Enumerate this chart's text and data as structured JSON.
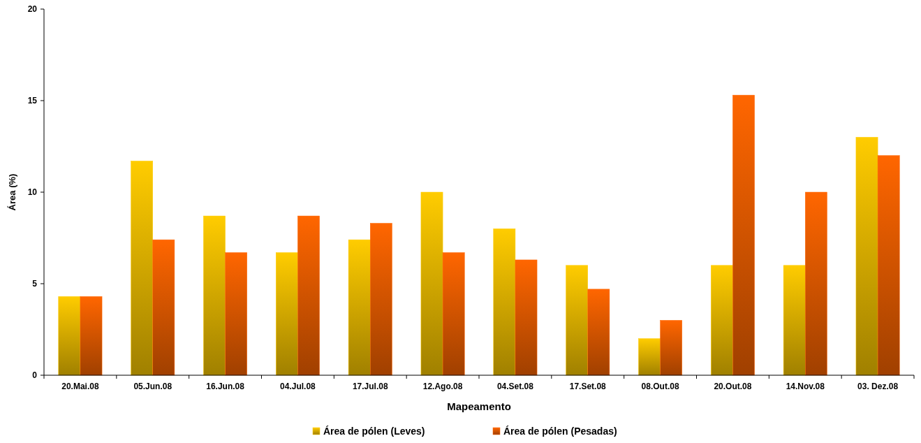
{
  "chart_data": {
    "type": "bar",
    "xlabel": "Mapeamento",
    "ylabel": "Área (%)",
    "categories": [
      "20.Mai.08",
      "05.Jun.08",
      "16.Jun.08",
      "04.Jul.08",
      "17.Jul.08",
      "12.Ago.08",
      "04.Set.08",
      "17.Set.08",
      "08.Out.08",
      "20.Out.08",
      "14.Nov.08",
      "03. Dez.08"
    ],
    "series": [
      {
        "name": "Área de pólen (Leves)",
        "color": "#ffcc00",
        "values": [
          4.3,
          11.7,
          8.7,
          6.7,
          7.4,
          10,
          8,
          6,
          2,
          6,
          6,
          13
        ]
      },
      {
        "name": "Área de pólen (Pesadas)",
        "color": "#ff6600",
        "values": [
          4.3,
          7.4,
          6.7,
          8.7,
          8.3,
          6.7,
          6.3,
          4.7,
          3,
          15.3,
          10,
          12
        ]
      }
    ],
    "ylim": [
      0,
      20
    ],
    "yticks": [
      0,
      5,
      10,
      15,
      20
    ],
    "grid": false,
    "legend": "bottom"
  }
}
